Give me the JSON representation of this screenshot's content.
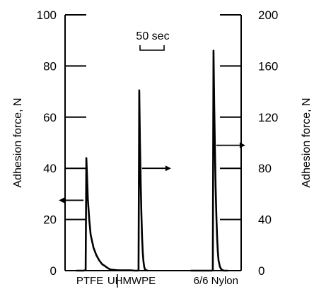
{
  "chart_data": {
    "type": "line",
    "title": "",
    "ylabel_left": "Adhesion force, N",
    "ylabel_right": "Adhesion force, N",
    "ylim_left": [
      0,
      100
    ],
    "ylim_right": [
      0,
      200
    ],
    "yticks_left": [
      0,
      20,
      40,
      60,
      80,
      100
    ],
    "yticks_right": [
      0,
      40,
      80,
      120,
      160,
      200
    ],
    "grid": false,
    "time_scale_label": "50 sec",
    "series": [
      {
        "name": "PTFE",
        "axis": "left",
        "peak": 44,
        "arrow_direction": "left",
        "points": [
          [
            0,
            0
          ],
          [
            10,
            0
          ],
          [
            13,
            0.2
          ],
          [
            14,
            44
          ],
          [
            15,
            36
          ],
          [
            16,
            28
          ],
          [
            18,
            20
          ],
          [
            20,
            14
          ],
          [
            24,
            9
          ],
          [
            28,
            6
          ],
          [
            32,
            4
          ],
          [
            36,
            2.5
          ],
          [
            40,
            1.8
          ],
          [
            44,
            1
          ],
          [
            48,
            0.4
          ],
          [
            52,
            0.3
          ],
          [
            56,
            0.2
          ],
          [
            60,
            0.1
          ],
          [
            76,
            0.1
          ],
          [
            82,
            0
          ]
        ]
      },
      {
        "name": "UHMWPE",
        "axis": "right",
        "peak": 141,
        "arrow_direction": "right",
        "points": [
          [
            82,
            0
          ],
          [
            86,
            0
          ],
          [
            87,
            0.5
          ],
          [
            88,
            141
          ],
          [
            89,
            100
          ],
          [
            90,
            70
          ],
          [
            91,
            45
          ],
          [
            92,
            26
          ],
          [
            93,
            14
          ],
          [
            94,
            7
          ],
          [
            95,
            3
          ],
          [
            96,
            1
          ],
          [
            98,
            0.3
          ],
          [
            100,
            0
          ]
        ]
      },
      {
        "name": "6/6 Nylon",
        "axis": "right",
        "peak": 172,
        "arrow_direction": "right",
        "points": [
          [
            160,
            0
          ],
          [
            190,
            0
          ],
          [
            191,
            0.5
          ],
          [
            192,
            172
          ],
          [
            193,
            130
          ],
          [
            194,
            95
          ],
          [
            195,
            65
          ],
          [
            196,
            42
          ],
          [
            197,
            26
          ],
          [
            198,
            15
          ],
          [
            199,
            8
          ],
          [
            201,
            3
          ],
          [
            203,
            1
          ],
          [
            206,
            0
          ],
          [
            212,
            0
          ]
        ]
      }
    ]
  }
}
